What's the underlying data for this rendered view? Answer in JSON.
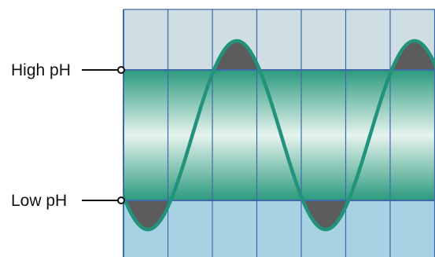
{
  "labels": {
    "high": "High pH",
    "low": "Low pH"
  },
  "colors": {
    "band_top": "#cfdde5",
    "band_bottom": "#a6d2e4",
    "green_edge": "#2b9a7e",
    "green_mid": "#e6f3ee",
    "grid_line": "#3d6aa6",
    "wave": "#22937a",
    "shaded_peak": "#5c5c5c",
    "marker_line": "#111111"
  }
}
